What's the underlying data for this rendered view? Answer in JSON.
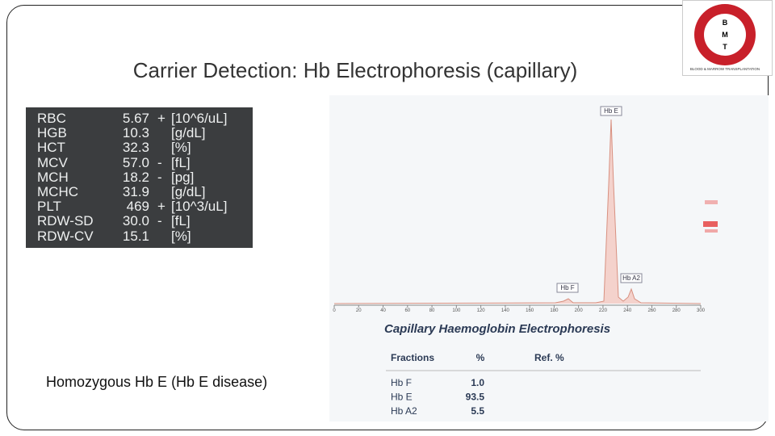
{
  "slide": {
    "title": "Carrier Detection: Hb Electrophoresis (capillary)",
    "caption": "Homozygous Hb E (Hb E disease)"
  },
  "logo": {
    "letters": [
      "B",
      "M",
      "T"
    ],
    "text": "BLOOD & MARROW TRANSPLANTATION"
  },
  "cbc": {
    "rows": [
      [
        "RBC",
        "5.67",
        {
          "flag": "+"
        },
        "[10^6/uL]"
      ],
      [
        "HGB",
        "10.3",
        {},
        "[g/dL]"
      ],
      [
        "HCT",
        "32.3",
        {},
        "[%]"
      ],
      [
        "MCV",
        "57.0",
        {
          "flag": "-"
        },
        "[fL]"
      ],
      [
        "MCH",
        "18.2",
        {
          "flag": "-"
        },
        "[pg]"
      ],
      [
        "MCHC",
        "31.9",
        {},
        "[g/dL]"
      ],
      [
        "PLT",
        "469",
        {
          "flag": "+"
        },
        "[10^3/uL]"
      ],
      [
        "RDW-SD",
        "30.0",
        {
          "flag": "-"
        },
        "[fL]"
      ],
      [
        "RDW-CV",
        "15.1",
        {},
        "[%]"
      ]
    ]
  },
  "electrophoresis": {
    "peaks": [
      "Hb E",
      "Hb F",
      "Hb A2"
    ],
    "axis": [
      0,
      20,
      40,
      60,
      80,
      100,
      120,
      140,
      160,
      180,
      200,
      220,
      240,
      260,
      280,
      300
    ],
    "title": "Capillary Haemoglobin Electrophoresis",
    "header": [
      "Fractions",
      "%",
      "Ref. %"
    ],
    "rows": [
      [
        "Hb F",
        "1.0"
      ],
      [
        "Hb E",
        "93.5"
      ],
      [
        "Hb A2",
        "5.5"
      ]
    ]
  }
}
